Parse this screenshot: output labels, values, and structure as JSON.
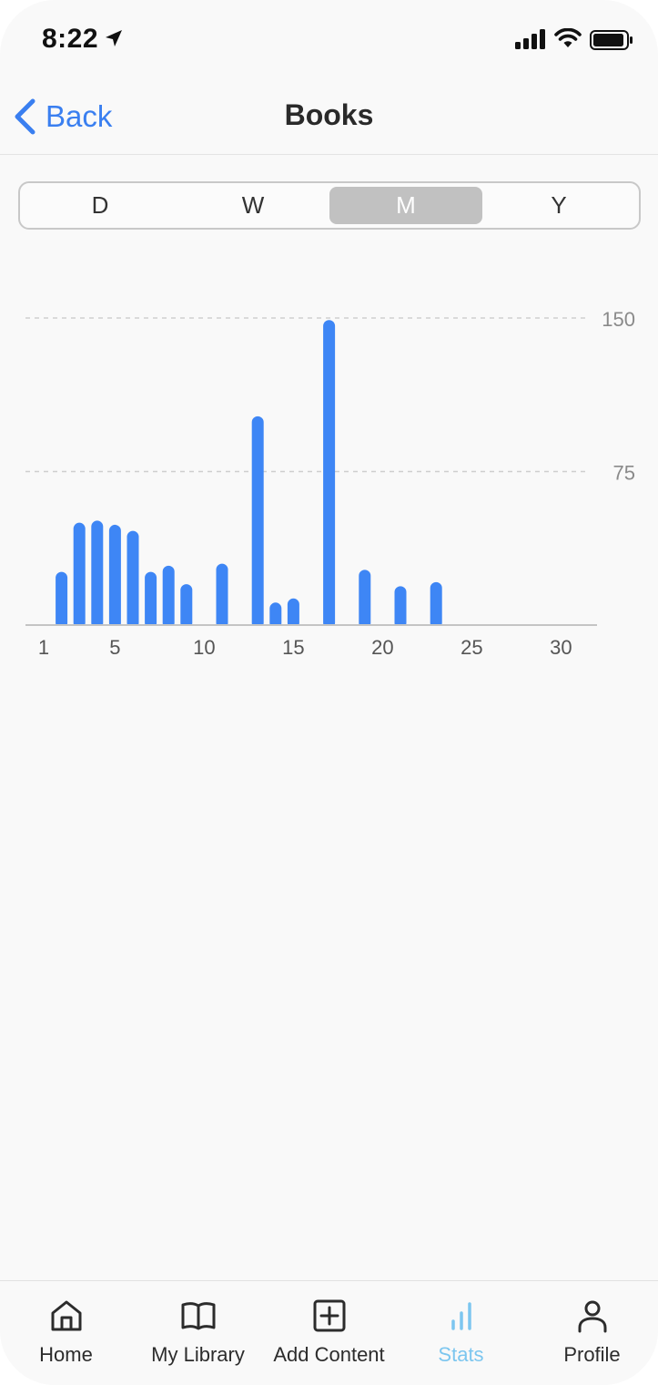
{
  "status_bar": {
    "time": "8:22"
  },
  "nav": {
    "back_label": "Back",
    "title": "Books"
  },
  "segments": [
    {
      "label": "D",
      "selected": false
    },
    {
      "label": "W",
      "selected": false
    },
    {
      "label": "M",
      "selected": true
    },
    {
      "label": "Y",
      "selected": false
    }
  ],
  "chart_data": {
    "type": "bar",
    "x": [
      2,
      3,
      4,
      5,
      6,
      7,
      8,
      9,
      11,
      13,
      14,
      15,
      17,
      19,
      21,
      23
    ],
    "values": [
      26,
      50,
      51,
      49,
      46,
      26,
      29,
      20,
      30,
      102,
      11,
      13,
      149,
      27,
      19,
      21
    ],
    "xlim": [
      1,
      31
    ],
    "ylim": [
      0,
      150
    ],
    "x_ticks": [
      1,
      5,
      10,
      15,
      20,
      25,
      30
    ],
    "y_ticks": [
      75,
      150
    ],
    "grid": true,
    "bar_color": "#3e86f5"
  },
  "tabs": [
    {
      "label": "Home",
      "icon": "home-icon",
      "active": false
    },
    {
      "label": "My Library",
      "icon": "book-icon",
      "active": false
    },
    {
      "label": "Add Content",
      "icon": "plus-square-icon",
      "active": false
    },
    {
      "label": "Stats",
      "icon": "stats-icon",
      "active": true
    },
    {
      "label": "Profile",
      "icon": "person-icon",
      "active": false
    }
  ],
  "colors": {
    "accent": "#3a7ff0",
    "tab_active": "#7cc6ef",
    "bar": "#3e86f5"
  }
}
